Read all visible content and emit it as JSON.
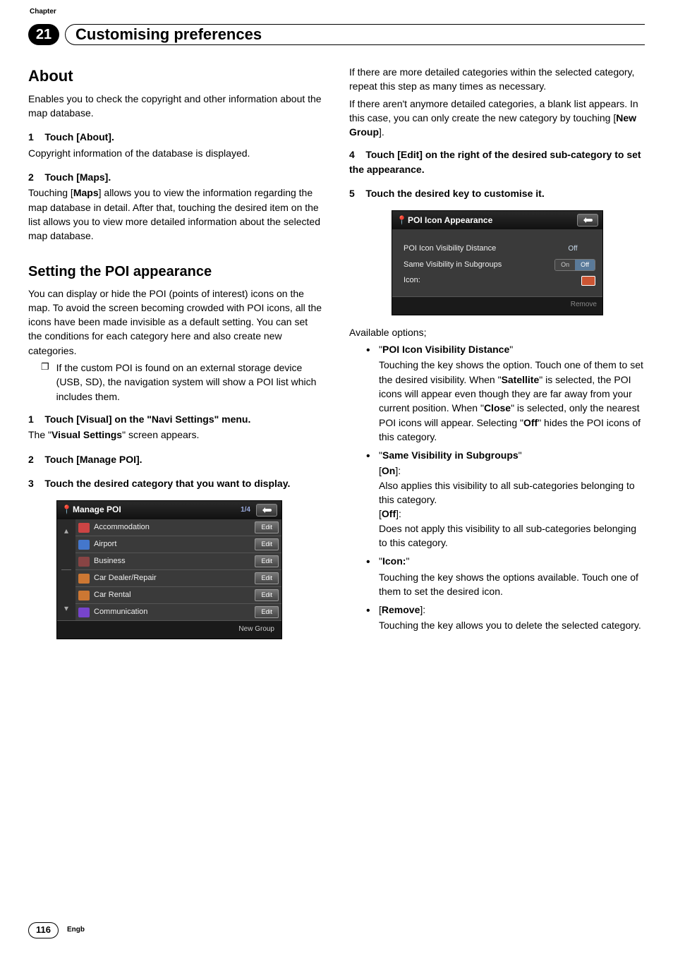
{
  "header": {
    "chapter_label": "Chapter",
    "chapter_number": "21",
    "title": "Customising preferences"
  },
  "left": {
    "about_heading": "About",
    "about_intro": "Enables you to check the copyright and other information about the map database.",
    "step1_num": "1",
    "step1_text": "Touch [About].",
    "step1_body": "Copyright information of the database is displayed.",
    "step2_num": "2",
    "step2_text": "Touch [Maps].",
    "step2_body_a": "Touching [",
    "step2_body_maps": "Maps",
    "step2_body_b": "] allows you to view the information regarding the map database in detail. After that, touching the desired item on the list allows you to view more detailed information about the selected map database.",
    "poi_heading": "Setting the POI appearance",
    "poi_intro": "You can display or hide the POI (points of interest) icons on the map. To avoid the screen becoming crowded with POI icons, all the icons have been made invisible as a default setting. You can set the conditions for each category here and also create new categories.",
    "poi_note_bullet": "❐",
    "poi_note": "If the custom POI is found on an external storage device (USB, SD), the navigation system will show a POI list which includes them.",
    "pstep1_num": "1",
    "pstep1_text": "Touch [Visual] on the \"Navi Settings\" menu.",
    "pstep1_body_a": "The \"",
    "pstep1_body_bold": "Visual Settings",
    "pstep1_body_b": "\" screen appears.",
    "pstep2_num": "2",
    "pstep2_text": "Touch [Manage POI].",
    "pstep3_num": "3",
    "pstep3_text": "Touch the desired category that you want to display."
  },
  "manage_poi": {
    "title": "Manage POI",
    "page_indicator": "1/4",
    "rows": [
      {
        "label": "Accommodation",
        "color": "#cc4444"
      },
      {
        "label": "Airport",
        "color": "#4477cc"
      },
      {
        "label": "Business",
        "color": "#884444"
      },
      {
        "label": "Car Dealer/Repair",
        "color": "#cc7733"
      },
      {
        "label": "Car Rental",
        "color": "#cc7733"
      },
      {
        "label": "Communication",
        "color": "#7744cc"
      }
    ],
    "edit_label": "Edit",
    "new_group": "New Group"
  },
  "right": {
    "intro_a": "If there are more detailed categories within the selected category, repeat this step as many times as necessary.",
    "intro_b_a": "If there aren't anymore detailed categories, a blank list appears. In this case, you can only create the new category by touching [",
    "intro_b_bold": "New Group",
    "intro_b_b": "].",
    "step4_num": "4",
    "step4_text": "Touch [Edit] on the right of the desired sub-category to set the appearance.",
    "step5_num": "5",
    "step5_text": "Touch the desired key to customise it.",
    "available": "Available options;",
    "opt1_label": "POI Icon Visibility Distance",
    "opt1_body_a": "Touching the key shows the option. Touch one of them to set the desired visibility. When \"",
    "opt1_sat": "Satellite",
    "opt1_body_b": "\" is selected, the POI icons will appear even though they are far away from your current position. When \"",
    "opt1_close": "Close",
    "opt1_body_c": "\" is selected, only the nearest POI icons will appear. Selecting \"",
    "opt1_off": "Off",
    "opt1_body_d": "\" hides the POI icons of this category.",
    "opt2_label": "Same Visibility in Subgroups",
    "opt2_on": "On",
    "opt2_on_desc": "Also applies this visibility to all sub-categories belonging to this category.",
    "opt2_off": "Off",
    "opt2_off_desc": "Does not apply this visibility to all sub-categories belonging to this category.",
    "opt3_label": "Icon:",
    "opt3_desc": "Touching the key shows the options available. Touch one of them to set the desired icon.",
    "opt4_label": "Remove",
    "opt4_desc": "Touching the key allows you to delete the selected category."
  },
  "poi_appearance": {
    "title": "POI Icon Appearance",
    "row1": "POI Icon Visibility Distance",
    "row1_val": "Off",
    "row2": "Same Visibility in Subgroups",
    "row2_on": "On",
    "row2_off": "Off",
    "row3": "Icon:",
    "remove": "Remove"
  },
  "footer": {
    "page": "116",
    "lang": "Engb"
  },
  "style": {
    "icon_chip_color": "#cc5533"
  }
}
